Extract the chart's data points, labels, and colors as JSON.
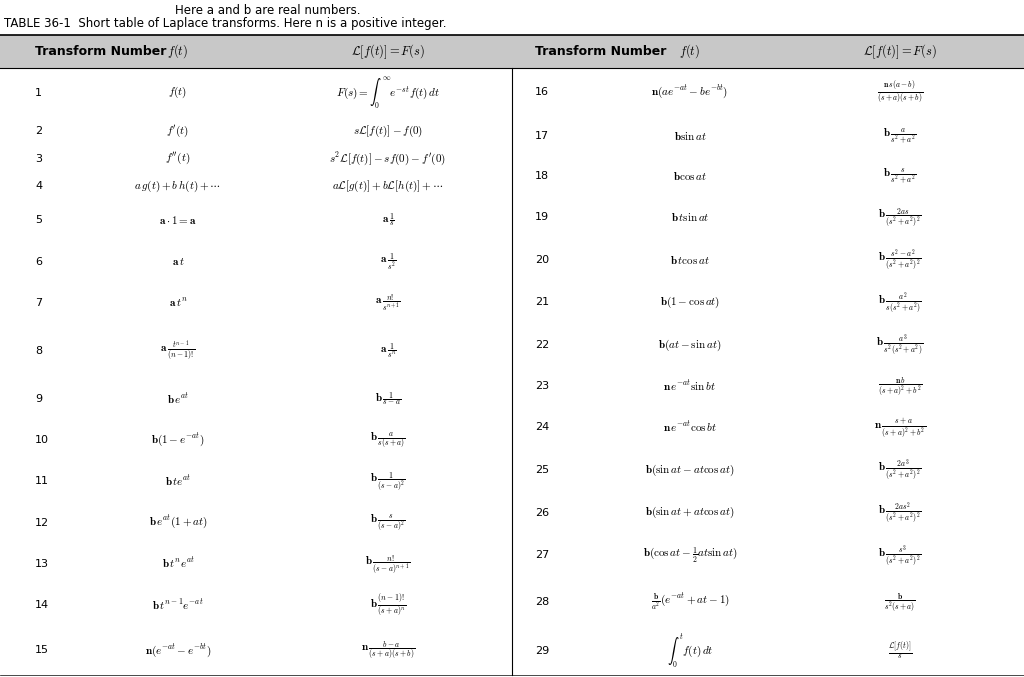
{
  "bg_color": "#ffffff",
  "header_bg": "#c8c8c8",
  "subtitle": "Here a and b are real numbers.",
  "title_main": "TABLE 36-1  Short table of Laplace transforms. Here n is a positive integer.",
  "left_rows": [
    [
      "1",
      "$f(t)$",
      "$F(s) = \\int_0^{\\infty} e^{-st} f(t)\\, dt$"
    ],
    [
      "2",
      "$f'(t)$",
      "$s\\mathcal{L}[f(t)] - f(0)$"
    ],
    [
      "3",
      "$f''(t)$",
      "$s^2\\mathcal{L}[f(t)] - sf(0) - f'(0)$"
    ],
    [
      "4",
      "$a\\,g(t) + b\\,h(t) + \\cdots$",
      "$a\\mathcal{L}[g(t)] + b\\mathcal{L}[h(t)] + \\cdots$"
    ],
    [
      "5",
      "$\\mathbf{a}\\cdot 1 = \\mathbf{a}$",
      "$\\mathbf{a}\\,\\frac{1}{s}$"
    ],
    [
      "6",
      "$\\mathbf{a}\\,t$",
      "$\\mathbf{a}\\,\\frac{1}{s^2}$"
    ],
    [
      "7",
      "$\\mathbf{a}\\,t^n$",
      "$\\mathbf{a}\\,\\frac{n!}{s^{n+1}}$"
    ],
    [
      "8",
      "$\\mathbf{a}\\,\\frac{t^{n-1}}{(n-1)!}$",
      "$\\mathbf{a}\\,\\frac{1}{s^n}$"
    ],
    [
      "9",
      "$\\mathbf{b}\\,e^{at}$",
      "$\\mathbf{b}\\,\\frac{1}{s-a}$"
    ],
    [
      "10",
      "$\\mathbf{b}(1 - e^{-at})$",
      "$\\mathbf{b}\\,\\frac{a}{s(s+a)}$"
    ],
    [
      "11",
      "$\\mathbf{b}\\,te^{at}$",
      "$\\mathbf{b}\\,\\frac{1}{(s-a)^2}$"
    ],
    [
      "12",
      "$\\mathbf{b}\\,e^{at}(1+at)$",
      "$\\mathbf{b}\\,\\frac{s}{(s-a)^2}$"
    ],
    [
      "13",
      "$\\mathbf{b}\\,t^n e^{at}$",
      "$\\mathbf{b}\\,\\frac{n!}{(s-a)^{n+1}}$"
    ],
    [
      "14",
      "$\\mathbf{b}\\,t^{n-1}e^{-at}$",
      "$\\mathbf{b}\\,\\frac{(n-1)!}{(s+a)^n}$"
    ],
    [
      "15",
      "$\\mathbf{n}(e^{-at} - e^{-bt})$",
      "$\\mathbf{n}\\,\\frac{b-a}{(s+a)(s+b)}$"
    ]
  ],
  "right_rows": [
    [
      "16",
      "$\\mathbf{n}(ae^{-at} - be^{-bt})$",
      "$\\frac{\\mathbf{n}\\,s(a-b)}{(s+a)(s+b)}$"
    ],
    [
      "17",
      "$\\mathbf{b}\\sin at$",
      "$\\mathbf{b}\\,\\frac{a}{s^2+a^2}$"
    ],
    [
      "18",
      "$\\mathbf{b}\\cos at$",
      "$\\mathbf{b}\\,\\frac{s}{s^2+a^2}$"
    ],
    [
      "19",
      "$\\mathbf{b}\\,t\\sin at$",
      "$\\mathbf{b}\\,\\frac{2as}{(s^2+a^2)^2}$"
    ],
    [
      "20",
      "$\\mathbf{b}\\,t\\cos at$",
      "$\\mathbf{b}\\,\\frac{s^2-a^2}{(s^2+a^2)^2}$"
    ],
    [
      "21",
      "$\\mathbf{b}(1-\\cos at)$",
      "$\\mathbf{b}\\,\\frac{a^2}{s(s^2+a^2)}$"
    ],
    [
      "22",
      "$\\mathbf{b}(at - \\sin at)$",
      "$\\mathbf{b}\\,\\frac{a^3}{s^2(s^2+a^2)}$"
    ],
    [
      "23",
      "$\\mathbf{n}\\,e^{-at}\\sin bt$",
      "$\\frac{\\mathbf{n}\\,b}{(s+a)^2+b^2}$"
    ],
    [
      "24",
      "$\\mathbf{n}\\,e^{-at}\\cos bt$",
      "$\\mathbf{n}\\,\\frac{s+a}{(s+a)^2+b^2}$"
    ],
    [
      "25",
      "$\\mathbf{b}(\\sin at - at\\cos at)$",
      "$\\mathbf{b}\\,\\frac{2a^3}{(s^2+a^2)^2}$"
    ],
    [
      "26",
      "$\\mathbf{b}(\\sin at + at\\cos at)$",
      "$\\mathbf{b}\\,\\frac{2as^2}{(s^2+a^2)^2}$"
    ],
    [
      "27",
      "$\\mathbf{b}(\\cos at - \\frac{1}{2}at\\sin at)$",
      "$\\mathbf{b}\\,\\frac{s^3}{(s^2+a^2)^2}$"
    ],
    [
      "28",
      "$\\frac{\\mathbf{b}}{a^2}(e^{-at}+at-1)$",
      "$\\frac{\\mathbf{b}}{s^2(s+a)}$"
    ],
    [
      "29",
      "$\\int_0^t f(t)\\,dt$",
      "$\\frac{\\mathcal{L}[f(t)]}{s}$"
    ]
  ],
  "col1_header": "Transform Number",
  "col2_header": "$f(t)$",
  "col3_header": "$\\mathcal{L}[f(t)] = F(s)$"
}
